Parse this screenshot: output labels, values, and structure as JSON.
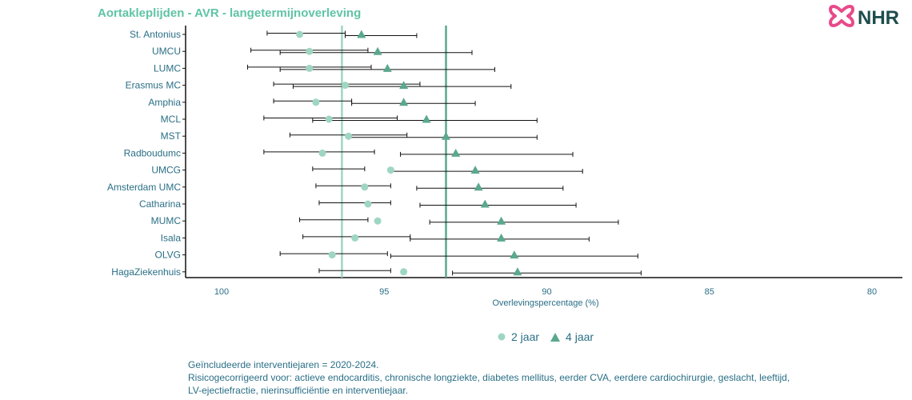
{
  "title": "Aortakleplijden - AVR - langetermijnoverleving",
  "logo": {
    "text": "NHR",
    "mark_color": "#e84a8a",
    "text_color": "#1e4d4d"
  },
  "footnote": [
    "Geïncludeerde interventiejaren = 2020-2024.",
    "Risicogecorrigeerd voor: actieve endocarditis, chronische longziekte, diabetes mellitus, eerder CVA, eerdere cardiochirurgie, geslacht, leeftijd,",
    "LV-ejectiefractie, nierinsufficiëntie en interventiejaar."
  ],
  "chart_data": {
    "type": "scatter",
    "xlabel": "Overlevingspercentage (%)",
    "xlim": [
      100,
      78.9
    ],
    "x_reversed": true,
    "xticks": [
      100,
      95,
      90,
      85,
      80
    ],
    "xtick_labels": [
      "100",
      "95",
      "90",
      "85",
      "80"
    ],
    "reference_lines": [
      {
        "series": "2 jaar",
        "x": 96.3,
        "color": "#9fd6c2"
      },
      {
        "series": "4 jaar",
        "x": 93.1,
        "color": "#5aa88f"
      }
    ],
    "series": [
      {
        "name": "2 jaar",
        "marker": "circle",
        "color": "#9fd6c2"
      },
      {
        "name": "4 jaar",
        "marker": "triangle",
        "color": "#5aa88f"
      }
    ],
    "categories": [
      "St. Antonius",
      "UMCU",
      "LUMC",
      "Erasmus MC",
      "Amphia",
      "MCL",
      "MST",
      "Radboudumc",
      "UMCG",
      "Amsterdam UMC",
      "Catharina",
      "MUMC",
      "Isala",
      "OLVG",
      "HagaZiekenhuis"
    ],
    "points": [
      {
        "hospital": "St. Antonius",
        "y2": 97.6,
        "y2_lo": 98.6,
        "y2_hi": 96.2,
        "y4": 95.7,
        "y4_lo": 96.2,
        "y4_hi": 94.0
      },
      {
        "hospital": "UMCU",
        "y2": 97.3,
        "y2_lo": 99.1,
        "y2_hi": 95.5,
        "y4": 95.2,
        "y4_lo": 98.2,
        "y4_hi": 92.3
      },
      {
        "hospital": "LUMC",
        "y2": 97.3,
        "y2_lo": 99.2,
        "y2_hi": 95.4,
        "y4": 94.9,
        "y4_lo": 98.2,
        "y4_hi": 91.6
      },
      {
        "hospital": "Erasmus MC",
        "y2": 96.2,
        "y2_lo": 98.4,
        "y2_hi": 93.9,
        "y4": 94.4,
        "y4_lo": 97.8,
        "y4_hi": 91.1
      },
      {
        "hospital": "Amphia",
        "y2": 97.1,
        "y2_lo": 98.4,
        "y2_hi": 96.0,
        "y4": 94.4,
        "y4_lo": 96.0,
        "y4_hi": 92.2
      },
      {
        "hospital": "MCL",
        "y2": 96.7,
        "y2_lo": 98.7,
        "y2_hi": 94.6,
        "y4": 93.7,
        "y4_lo": 97.2,
        "y4_hi": 90.3
      },
      {
        "hospital": "MST",
        "y2": 96.1,
        "y2_lo": 97.9,
        "y2_hi": 94.3,
        "y4": 93.1,
        "y4_lo": 96.1,
        "y4_hi": 90.3
      },
      {
        "hospital": "Radboudumc",
        "y2": 96.9,
        "y2_lo": 98.7,
        "y2_hi": 95.3,
        "y4": 92.8,
        "y4_lo": 94.5,
        "y4_hi": 89.2
      },
      {
        "hospital": "UMCG",
        "y2": 94.8,
        "y2_lo": 97.2,
        "y2_hi": 95.6,
        "y4": 92.2,
        "y4_lo": 94.8,
        "y4_hi": 88.9
      },
      {
        "hospital": "Amsterdam UMC",
        "y2": 95.6,
        "y2_lo": 97.1,
        "y2_hi": 94.8,
        "y4": 92.1,
        "y4_lo": 94.0,
        "y4_hi": 89.5
      },
      {
        "hospital": "Catharina",
        "y2": 95.5,
        "y2_lo": 97.0,
        "y2_hi": 94.8,
        "y4": 91.9,
        "y4_lo": 93.9,
        "y4_hi": 89.1
      },
      {
        "hospital": "MUMC",
        "y2": 95.2,
        "y2_lo": 97.6,
        "y2_hi": 95.5,
        "y4": 91.4,
        "y4_lo": 93.6,
        "y4_hi": 87.8
      },
      {
        "hospital": "Isala",
        "y2": 95.9,
        "y2_lo": 97.5,
        "y2_hi": 94.2,
        "y4": 91.4,
        "y4_lo": 94.2,
        "y4_hi": 88.7
      },
      {
        "hospital": "OLVG",
        "y2": 96.6,
        "y2_lo": 98.2,
        "y2_hi": 94.9,
        "y4": 91.0,
        "y4_lo": 94.8,
        "y4_hi": 87.2
      },
      {
        "hospital": "HagaZiekenhuis",
        "y2": 94.4,
        "y2_lo": 97.0,
        "y2_hi": 94.8,
        "y4": 90.9,
        "y4_lo": 92.9,
        "y4_hi": 87.1
      }
    ]
  }
}
